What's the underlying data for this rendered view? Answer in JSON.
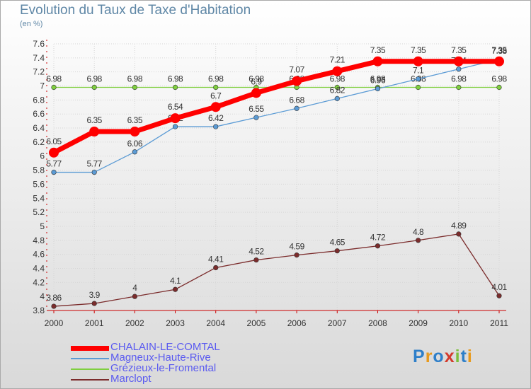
{
  "title": "Evolution du Taux de Taxe d'Habitation",
  "unit": "(en %)",
  "logo": {
    "text": "Proxiti",
    "colors": [
      "#2e7fc9",
      "#e89a1c",
      "#2e7fc9",
      "#d33a2c",
      "#7bbf3a",
      "#2e7fc9",
      "#e89a1c"
    ]
  },
  "chart_data": {
    "type": "line",
    "title": "Evolution du Taux de Taxe d'Habitation",
    "ylabel": "(en %)",
    "xlabel": "",
    "x": [
      "2000",
      "2001",
      "2002",
      "2003",
      "2004",
      "2005",
      "2006",
      "2007",
      "2008",
      "2009",
      "2010",
      "2011"
    ],
    "ylim": [
      3.8,
      7.6
    ],
    "yticks": [
      "3.8",
      "4",
      "4.2",
      "4.4",
      "4.6",
      "4.8",
      "5",
      "5.2",
      "5.4",
      "5.6",
      "5.8",
      "6",
      "6.2",
      "6.4",
      "6.6",
      "6.8",
      "7",
      "7.2",
      "7.4",
      "7.6"
    ],
    "grid": true,
    "legend_position": "bottom-left",
    "series": [
      {
        "name": "CHALAIN-LE-COMTAL",
        "color": "#ff0000",
        "values": [
          6.05,
          6.35,
          6.35,
          6.54,
          6.7,
          6.9,
          7.07,
          7.21,
          7.35,
          7.35,
          7.35,
          7.35
        ],
        "labels": [
          "6.05",
          "6.35",
          "6.35",
          "6.54",
          "6.7",
          "6.9",
          "7.07",
          "7.21",
          "7.35",
          "7.35",
          "7.35",
          "7.35"
        ]
      },
      {
        "name": "Magneux-Haute-Rive",
        "color": "#5b9bd5",
        "values": [
          5.77,
          5.77,
          6.06,
          6.42,
          6.42,
          6.55,
          6.68,
          6.82,
          6.96,
          7.1,
          7.24,
          7.38
        ],
        "labels": [
          "5.77",
          "5.77",
          "6.06",
          "6.42",
          "6.42",
          "6.55",
          "6.68",
          "6.82",
          "6.96",
          "7.1",
          "7.24",
          "7.38"
        ]
      },
      {
        "name": "Grézieux-le-Fromental",
        "color": "#7fcf3f",
        "values": [
          6.98,
          6.98,
          6.98,
          6.98,
          6.98,
          6.98,
          6.98,
          6.98,
          6.98,
          6.98,
          6.98,
          6.98
        ],
        "labels": [
          "6.98",
          "6.98",
          "6.98",
          "6.98",
          "6.98",
          "6.98",
          "6.98",
          "6.98",
          "6.98",
          "6.98",
          "6.98",
          "6.98"
        ]
      },
      {
        "name": "Marclopt",
        "color": "#7b2c2c",
        "values": [
          3.86,
          3.9,
          4.0,
          4.1,
          4.41,
          4.52,
          4.59,
          4.65,
          4.72,
          4.8,
          4.89,
          4.01
        ],
        "labels": [
          "3.86",
          "3.9",
          "4",
          "4.1",
          "4.41",
          "4.52",
          "4.59",
          "4.65",
          "4.72",
          "4.8",
          "4.89",
          "4.01"
        ]
      }
    ]
  }
}
